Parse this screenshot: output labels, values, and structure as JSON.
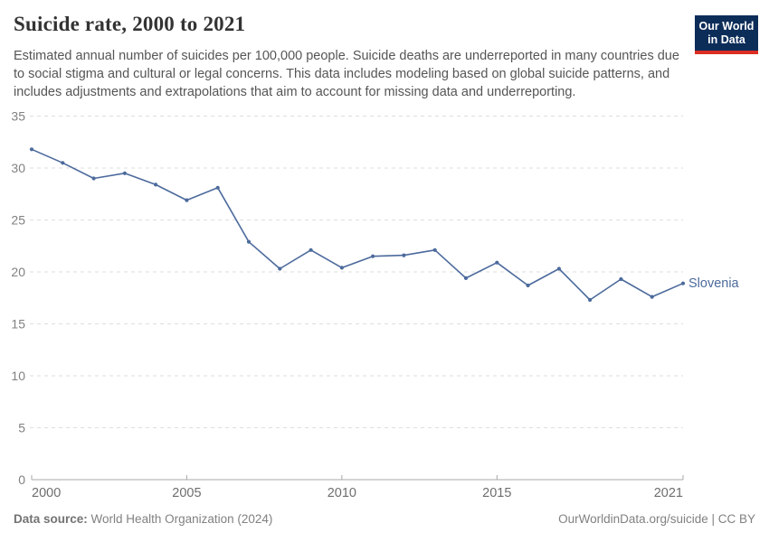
{
  "header": {
    "title": "Suicide rate, 2000 to 2021",
    "subtitle": "Estimated annual number of suicides per 100,000 people. Suicide deaths are underreported in many countries due to social stigma and cultural or legal concerns. This data includes modeling based on global suicide patterns, and includes adjustments and extrapolations that aim to account for missing data and underreporting.",
    "logo": {
      "line1": "Our World",
      "line2": "in Data",
      "bg_color": "#0d2d59",
      "accent_color": "#dc2d22"
    }
  },
  "chart_data": {
    "type": "line",
    "title": "Suicide rate, 2000 to 2021",
    "xlabel": "",
    "ylabel": "",
    "x": [
      2000,
      2001,
      2002,
      2003,
      2004,
      2005,
      2006,
      2007,
      2008,
      2009,
      2010,
      2011,
      2012,
      2013,
      2014,
      2015,
      2016,
      2017,
      2018,
      2019,
      2020,
      2021
    ],
    "series": [
      {
        "name": "Slovenia",
        "color": "#4c6a9c",
        "values": [
          31.8,
          30.5,
          29.0,
          29.5,
          28.4,
          26.9,
          28.1,
          22.9,
          20.3,
          22.1,
          20.4,
          21.5,
          21.6,
          22.1,
          19.4,
          20.9,
          18.7,
          20.3,
          17.3,
          19.3,
          17.6,
          18.9
        ]
      }
    ],
    "ylim": [
      0,
      35
    ],
    "yticks": [
      0,
      5,
      10,
      15,
      20,
      25,
      30,
      35
    ],
    "xticks": [
      2000,
      2005,
      2010,
      2015,
      2021
    ],
    "grid": "horizontal-dashed",
    "legend_position": "end-of-line-label",
    "marker": "dot"
  },
  "footer": {
    "data_source_label": "Data source:",
    "data_source": "World Health Organization (2024)",
    "attribution": "OurWorldinData.org/suicide | CC BY"
  }
}
